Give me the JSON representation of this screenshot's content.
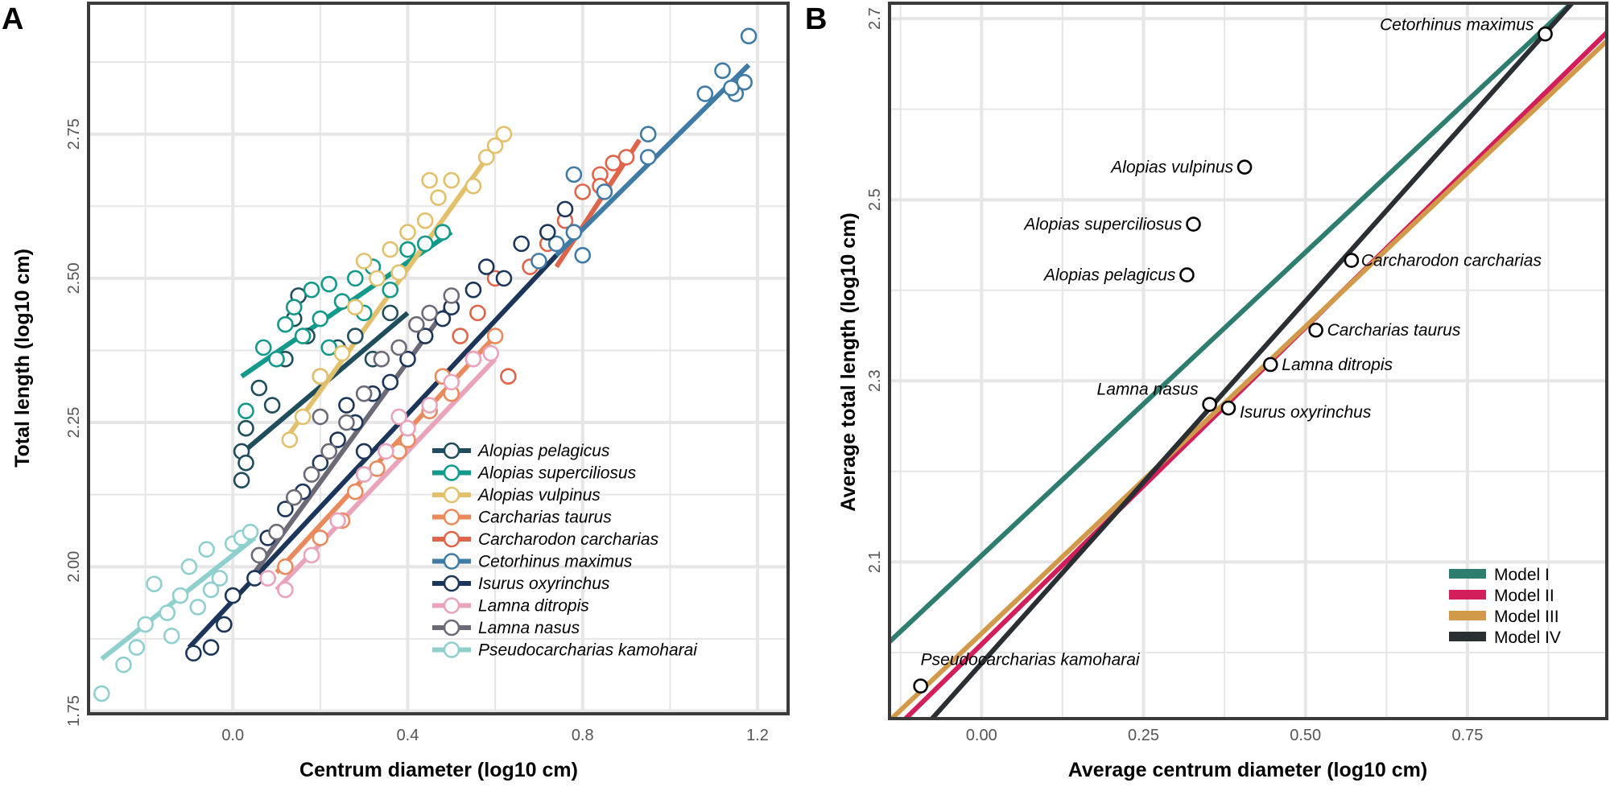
{
  "chart_data": [
    {
      "panel": "A",
      "type": "scatter",
      "xlabel": "Centrum diameter (log10 cm)",
      "ylabel": "Total length (log10 cm)",
      "xlim": [
        -0.33,
        1.27
      ],
      "ylim": [
        1.745,
        2.977
      ],
      "xticks": [
        "0.0",
        "0.4",
        "0.8",
        "1.2"
      ],
      "yticks": [
        "1.75",
        "2.00",
        "2.25",
        "2.50",
        "2.75"
      ],
      "grid": true,
      "legend_position": "bottom-right",
      "series": [
        {
          "name": "Alopias pelagicus",
          "color": "#1f4d5c",
          "line": [
            [
              0.01,
              2.19
            ],
            [
              0.4,
              2.44
            ]
          ],
          "points": [
            [
              0.02,
              2.15
            ],
            [
              0.02,
              2.2
            ],
            [
              0.03,
              2.24
            ],
            [
              0.06,
              2.31
            ],
            [
              0.09,
              2.28
            ],
            [
              0.12,
              2.36
            ],
            [
              0.15,
              2.47
            ],
            [
              0.17,
              2.4
            ],
            [
              0.2,
              2.33
            ],
            [
              0.24,
              2.38
            ],
            [
              0.28,
              2.4
            ],
            [
              0.32,
              2.36
            ],
            [
              0.36,
              2.44
            ],
            [
              0.14,
              2.43
            ],
            [
              0.03,
              2.18
            ]
          ]
        },
        {
          "name": "Alopias superciliosus",
          "color": "#12998a",
          "line": [
            [
              0.02,
              2.33
            ],
            [
              0.5,
              2.58
            ]
          ],
          "points": [
            [
              0.03,
              2.27
            ],
            [
              0.07,
              2.38
            ],
            [
              0.1,
              2.36
            ],
            [
              0.12,
              2.42
            ],
            [
              0.14,
              2.45
            ],
            [
              0.16,
              2.4
            ],
            [
              0.18,
              2.48
            ],
            [
              0.2,
              2.43
            ],
            [
              0.22,
              2.49
            ],
            [
              0.25,
              2.46
            ],
            [
              0.28,
              2.5
            ],
            [
              0.32,
              2.52
            ],
            [
              0.36,
              2.48
            ],
            [
              0.4,
              2.55
            ],
            [
              0.44,
              2.56
            ],
            [
              0.48,
              2.58
            ],
            [
              0.22,
              2.38
            ],
            [
              0.3,
              2.44
            ]
          ]
        },
        {
          "name": "Alopias vulpinus",
          "color": "#e2c06c",
          "line": [
            [
              0.12,
              2.22
            ],
            [
              0.62,
              2.75
            ]
          ],
          "points": [
            [
              0.13,
              2.22
            ],
            [
              0.16,
              2.26
            ],
            [
              0.2,
              2.33
            ],
            [
              0.25,
              2.37
            ],
            [
              0.28,
              2.45
            ],
            [
              0.3,
              2.53
            ],
            [
              0.33,
              2.5
            ],
            [
              0.36,
              2.55
            ],
            [
              0.38,
              2.51
            ],
            [
              0.4,
              2.58
            ],
            [
              0.44,
              2.6
            ],
            [
              0.47,
              2.64
            ],
            [
              0.5,
              2.67
            ],
            [
              0.55,
              2.66
            ],
            [
              0.58,
              2.71
            ],
            [
              0.62,
              2.75
            ],
            [
              0.6,
              2.73
            ],
            [
              0.45,
              2.67
            ]
          ]
        },
        {
          "name": "Carcharias taurus",
          "color": "#e98a5c",
          "line": [
            [
              0.1,
              1.99
            ],
            [
              0.6,
              2.4
            ]
          ],
          "points": [
            [
              0.12,
              2.0
            ],
            [
              0.2,
              2.05
            ],
            [
              0.28,
              2.13
            ],
            [
              0.33,
              2.17
            ],
            [
              0.38,
              2.2
            ],
            [
              0.45,
              2.27
            ],
            [
              0.5,
              2.3
            ],
            [
              0.55,
              2.36
            ],
            [
              0.6,
              2.4
            ],
            [
              0.4,
              2.22
            ],
            [
              0.25,
              2.08
            ],
            [
              0.48,
              2.33
            ]
          ]
        },
        {
          "name": "Carcharodon carcharias",
          "color": "#df6449",
          "line": [
            [
              0.74,
              2.52
            ],
            [
              0.93,
              2.74
            ]
          ],
          "points": [
            [
              0.52,
              2.4
            ],
            [
              0.56,
              2.44
            ],
            [
              0.6,
              2.5
            ],
            [
              0.63,
              2.33
            ],
            [
              0.68,
              2.52
            ],
            [
              0.72,
              2.56
            ],
            [
              0.76,
              2.6
            ],
            [
              0.8,
              2.65
            ],
            [
              0.84,
              2.68
            ],
            [
              0.87,
              2.7
            ],
            [
              0.9,
              2.71
            ],
            [
              0.84,
              2.66
            ]
          ]
        },
        {
          "name": "Cetorhinus maximus",
          "color": "#3f7ba4",
          "line": [
            [
              0.74,
              2.54
            ],
            [
              1.18,
              2.87
            ]
          ],
          "points": [
            [
              0.7,
              2.53
            ],
            [
              0.74,
              2.56
            ],
            [
              0.78,
              2.58
            ],
            [
              0.8,
              2.54
            ],
            [
              0.78,
              2.68
            ],
            [
              0.85,
              2.65
            ],
            [
              0.95,
              2.71
            ],
            [
              0.95,
              2.75
            ],
            [
              1.08,
              2.82
            ],
            [
              1.12,
              2.86
            ],
            [
              1.15,
              2.82
            ],
            [
              1.17,
              2.84
            ],
            [
              1.18,
              2.92
            ],
            [
              1.14,
              2.83
            ]
          ]
        },
        {
          "name": "Isurus oxyrinchus",
          "color": "#1c365a",
          "line": [
            [
              -0.1,
              1.86
            ],
            [
              0.74,
              2.54
            ]
          ],
          "points": [
            [
              -0.09,
              1.85
            ],
            [
              -0.05,
              1.86
            ],
            [
              -0.02,
              1.9
            ],
            [
              0.0,
              1.95
            ],
            [
              0.05,
              1.98
            ],
            [
              0.08,
              2.05
            ],
            [
              0.12,
              2.1
            ],
            [
              0.16,
              2.13
            ],
            [
              0.2,
              2.18
            ],
            [
              0.24,
              2.22
            ],
            [
              0.28,
              2.25
            ],
            [
              0.32,
              2.3
            ],
            [
              0.36,
              2.32
            ],
            [
              0.4,
              2.36
            ],
            [
              0.44,
              2.4
            ],
            [
              0.48,
              2.43
            ],
            [
              0.5,
              2.45
            ],
            [
              0.55,
              2.48
            ],
            [
              0.58,
              2.52
            ],
            [
              0.62,
              2.5
            ],
            [
              0.66,
              2.56
            ],
            [
              0.72,
              2.58
            ],
            [
              0.76,
              2.62
            ],
            [
              0.3,
              2.2
            ],
            [
              0.26,
              2.28
            ]
          ]
        },
        {
          "name": "Lamna ditropis",
          "color": "#e9a3bb",
          "line": [
            [
              0.1,
              1.96
            ],
            [
              0.6,
              2.36
            ]
          ],
          "points": [
            [
              0.08,
              1.98
            ],
            [
              0.12,
              1.96
            ],
            [
              0.18,
              2.02
            ],
            [
              0.24,
              2.08
            ],
            [
              0.3,
              2.16
            ],
            [
              0.35,
              2.2
            ],
            [
              0.4,
              2.24
            ],
            [
              0.45,
              2.28
            ],
            [
              0.5,
              2.32
            ],
            [
              0.55,
              2.36
            ],
            [
              0.59,
              2.37
            ],
            [
              0.38,
              2.26
            ]
          ]
        },
        {
          "name": "Lamna nasus",
          "color": "#6d6a78",
          "line": [
            [
              0.05,
              1.99
            ],
            [
              0.5,
              2.46
            ]
          ],
          "points": [
            [
              0.06,
              2.02
            ],
            [
              0.1,
              2.06
            ],
            [
              0.14,
              2.12
            ],
            [
              0.18,
              2.16
            ],
            [
              0.22,
              2.2
            ],
            [
              0.26,
              2.25
            ],
            [
              0.3,
              2.3
            ],
            [
              0.34,
              2.36
            ],
            [
              0.38,
              2.38
            ],
            [
              0.42,
              2.42
            ],
            [
              0.45,
              2.44
            ],
            [
              0.5,
              2.47
            ],
            [
              0.2,
              2.26
            ]
          ]
        },
        {
          "name": "Pseudocarcharias kamoharai",
          "color": "#8fd0cf",
          "line": [
            [
              -0.3,
              1.84
            ],
            [
              0.05,
              2.05
            ]
          ],
          "points": [
            [
              -0.3,
              1.78
            ],
            [
              -0.25,
              1.83
            ],
            [
              -0.22,
              1.86
            ],
            [
              -0.2,
              1.9
            ],
            [
              -0.18,
              1.97
            ],
            [
              -0.15,
              1.92
            ],
            [
              -0.12,
              1.95
            ],
            [
              -0.1,
              2.0
            ],
            [
              -0.08,
              1.93
            ],
            [
              -0.06,
              2.03
            ],
            [
              -0.03,
              1.98
            ],
            [
              0.0,
              2.04
            ],
            [
              0.02,
              2.05
            ],
            [
              0.04,
              2.06
            ],
            [
              -0.14,
              1.88
            ],
            [
              -0.05,
              1.96
            ]
          ]
        }
      ]
    },
    {
      "panel": "B",
      "type": "scatter",
      "xlabel": "Average centrum diameter (log10 cm)",
      "ylabel": "Average total length (log10 cm)",
      "xlim": [
        -0.142,
        0.965
      ],
      "ylim": [
        1.927,
        2.717
      ],
      "xticks": [
        "0.00",
        "0.25",
        "0.50",
        "0.75"
      ],
      "yticks": [
        "2.1",
        "2.3",
        "2.5",
        "2.7"
      ],
      "grid": true,
      "legend_position": "bottom-right",
      "points": [
        {
          "label": "Cetorhinus maximus",
          "x": 0.87,
          "y": 2.683
        },
        {
          "label": "Alopias vulpinus",
          "x": 0.406,
          "y": 2.536
        },
        {
          "label": "Alopias superciliosus",
          "x": 0.327,
          "y": 2.473
        },
        {
          "label": "Alopias pelagicus",
          "x": 0.317,
          "y": 2.417
        },
        {
          "label": "Carcharodon carcharias",
          "x": 0.571,
          "y": 2.433
        },
        {
          "label": "Carcharias taurus",
          "x": 0.516,
          "y": 2.356
        },
        {
          "label": "Lamna ditropis",
          "x": 0.446,
          "y": 2.318
        },
        {
          "label": "Lamna nasus",
          "x": 0.352,
          "y": 2.274
        },
        {
          "label": "Isurus oxyrinchus",
          "x": 0.381,
          "y": 2.27
        },
        {
          "label": "Pseudocarcharias kamoharai",
          "x": -0.094,
          "y": 1.963
        }
      ],
      "models": [
        {
          "name": "Model I",
          "color": "#2e7d6f",
          "intercept": 2.107,
          "slope": 0.67
        },
        {
          "name": "Model II",
          "color": "#d21f5c",
          "intercept": 2.009,
          "slope": 0.7
        },
        {
          "name": "Model III",
          "color": "#d19a4a",
          "intercept": 2.021,
          "slope": 0.678
        },
        {
          "name": "Model IV",
          "color": "#2a2f33",
          "intercept": 1.988,
          "slope": 0.8
        }
      ]
    }
  ]
}
